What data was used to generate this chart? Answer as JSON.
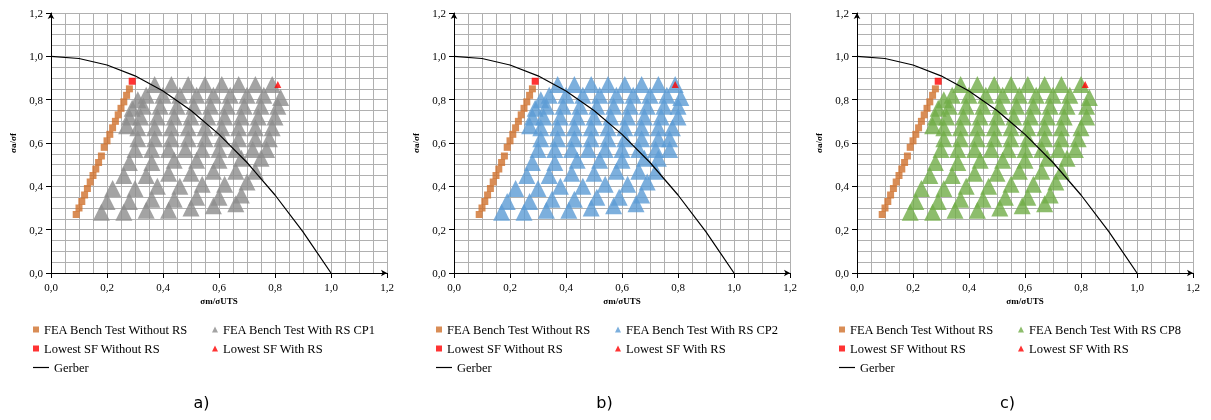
{
  "chart_data": [
    {
      "type": "scatter",
      "xlabel": "σm/σUTS",
      "ylabel": "σa/σf",
      "xlim": [
        0,
        1.2
      ],
      "ylim": [
        0,
        1.2
      ],
      "xticks": [
        {
          "value": 0,
          "label": "0,0"
        },
        {
          "value": 0.2,
          "label": "0,2"
        },
        {
          "value": 0.4,
          "label": "0,4"
        },
        {
          "value": 0.6,
          "label": "0,6"
        },
        {
          "value": 0.8,
          "label": "0,8"
        },
        {
          "value": 1,
          "label": "1,0"
        },
        {
          "value": 1.2,
          "label": "1,2"
        }
      ],
      "yticks": [
        {
          "value": 0,
          "label": "0,0"
        },
        {
          "value": 0.2,
          "label": "0,2"
        },
        {
          "value": 0.4,
          "label": "0,4"
        },
        {
          "value": 0.6,
          "label": "0,6"
        },
        {
          "value": 0.8,
          "label": "0,8"
        },
        {
          "value": 1,
          "label": "1,0"
        },
        {
          "value": 1.2,
          "label": "1,2"
        }
      ],
      "grid": true,
      "legend": "bottom",
      "annotations": [
        "a)"
      ],
      "series": [
        {
          "name": "FEA Bench Test Without RS",
          "color": "#d0702c",
          "type": "scatter",
          "marker": "square",
          "x": [
            0.09,
            0.1,
            0.11,
            0.12,
            0.13,
            0.14,
            0.15,
            0.16,
            0.17,
            0.18,
            0.19,
            0.2,
            0.21,
            0.22,
            0.23,
            0.24,
            0.25,
            0.26,
            0.27,
            0.28
          ],
          "values": [
            0.27,
            0.3,
            0.33,
            0.36,
            0.39,
            0.42,
            0.45,
            0.48,
            0.51,
            0.54,
            0.58,
            0.61,
            0.64,
            0.67,
            0.7,
            0.73,
            0.76,
            0.79,
            0.82,
            0.85
          ]
        },
        {
          "name": "FEA Bench Test With RS CP1",
          "color": "#8c8c8c",
          "type": "scatter",
          "marker": "triangle",
          "x": [
            0.37,
            0.43,
            0.49,
            0.55,
            0.61,
            0.67,
            0.73,
            0.79,
            0.34,
            0.4,
            0.46,
            0.52,
            0.58,
            0.64,
            0.7,
            0.76,
            0.82,
            0.33,
            0.39,
            0.45,
            0.51,
            0.57,
            0.63,
            0.69,
            0.75,
            0.81,
            0.32,
            0.38,
            0.44,
            0.5,
            0.56,
            0.62,
            0.68,
            0.74,
            0.8,
            0.31,
            0.37,
            0.43,
            0.49,
            0.55,
            0.61,
            0.67,
            0.73,
            0.79,
            0.31,
            0.37,
            0.43,
            0.49,
            0.55,
            0.61,
            0.67,
            0.73,
            0.78,
            0.3,
            0.36,
            0.42,
            0.48,
            0.54,
            0.6,
            0.66,
            0.72,
            0.77,
            0.27,
            0.28,
            0.29,
            0.31,
            0.28,
            0.36,
            0.44,
            0.52,
            0.6,
            0.68,
            0.75,
            0.26,
            0.34,
            0.42,
            0.5,
            0.58,
            0.66,
            0.73,
            0.22,
            0.3,
            0.38,
            0.46,
            0.54,
            0.62,
            0.7,
            0.2,
            0.28,
            0.36,
            0.44,
            0.52,
            0.6,
            0.68,
            0.18,
            0.26,
            0.34,
            0.42,
            0.5,
            0.58,
            0.66
          ],
          "values": [
            0.87,
            0.87,
            0.87,
            0.87,
            0.87,
            0.87,
            0.87,
            0.87,
            0.82,
            0.82,
            0.82,
            0.82,
            0.82,
            0.82,
            0.82,
            0.82,
            0.81,
            0.77,
            0.77,
            0.77,
            0.77,
            0.77,
            0.77,
            0.77,
            0.77,
            0.77,
            0.72,
            0.72,
            0.72,
            0.72,
            0.72,
            0.72,
            0.72,
            0.72,
            0.72,
            0.67,
            0.67,
            0.67,
            0.67,
            0.67,
            0.67,
            0.67,
            0.67,
            0.67,
            0.62,
            0.62,
            0.62,
            0.62,
            0.62,
            0.62,
            0.62,
            0.62,
            0.62,
            0.57,
            0.57,
            0.57,
            0.57,
            0.57,
            0.57,
            0.57,
            0.57,
            0.57,
            0.68,
            0.72,
            0.76,
            0.8,
            0.51,
            0.51,
            0.52,
            0.52,
            0.52,
            0.53,
            0.53,
            0.45,
            0.45,
            0.46,
            0.46,
            0.47,
            0.47,
            0.47,
            0.39,
            0.39,
            0.4,
            0.4,
            0.41,
            0.41,
            0.42,
            0.33,
            0.33,
            0.34,
            0.34,
            0.35,
            0.35,
            0.36,
            0.28,
            0.28,
            0.29,
            0.29,
            0.3,
            0.31,
            0.32
          ]
        },
        {
          "name": "Lowest SF Without RS",
          "color": "#ff0000",
          "type": "scatter",
          "marker": "square",
          "x": [
            0.29
          ],
          "values": [
            0.885
          ]
        },
        {
          "name": "Lowest SF With RS",
          "color": "#ff0000",
          "type": "scatter",
          "marker": "triangle",
          "x": [
            0.81
          ],
          "values": [
            0.87
          ]
        },
        {
          "name": "Gerber",
          "color": "#000000",
          "type": "line",
          "marker": "none",
          "x": [
            0,
            0.1,
            0.2,
            0.3,
            0.4,
            0.5,
            0.6,
            0.7,
            0.8,
            0.9,
            1
          ],
          "values": [
            1,
            0.99,
            0.96,
            0.91,
            0.84,
            0.75,
            0.64,
            0.51,
            0.36,
            0.19,
            0
          ]
        }
      ]
    },
    {
      "type": "scatter",
      "xlabel": "σm/σUTS",
      "ylabel": "σa/σf",
      "xlim": [
        0,
        1.2
      ],
      "ylim": [
        0,
        1.2
      ],
      "xticks": [
        {
          "value": 0,
          "label": "0,0"
        },
        {
          "value": 0.2,
          "label": "0,2"
        },
        {
          "value": 0.4,
          "label": "0,4"
        },
        {
          "value": 0.6,
          "label": "0,6"
        },
        {
          "value": 0.8,
          "label": "0,8"
        },
        {
          "value": 1,
          "label": "1,0"
        },
        {
          "value": 1.2,
          "label": "1,2"
        }
      ],
      "yticks": [
        {
          "value": 0,
          "label": "0,0"
        },
        {
          "value": 0.2,
          "label": "0,2"
        },
        {
          "value": 0.4,
          "label": "0,4"
        },
        {
          "value": 0.6,
          "label": "0,6"
        },
        {
          "value": 0.8,
          "label": "0,8"
        },
        {
          "value": 1,
          "label": "1,0"
        },
        {
          "value": 1.2,
          "label": "1,2"
        }
      ],
      "grid": true,
      "legend": "bottom",
      "annotations": [
        "b)"
      ],
      "series": [
        {
          "name": "FEA Bench Test Without RS",
          "color": "#d0702c",
          "type": "scatter",
          "marker": "square",
          "x": [
            0.09,
            0.1,
            0.11,
            0.12,
            0.13,
            0.14,
            0.15,
            0.16,
            0.17,
            0.18,
            0.19,
            0.2,
            0.21,
            0.22,
            0.23,
            0.24,
            0.25,
            0.26,
            0.27,
            0.28
          ],
          "values": [
            0.27,
            0.3,
            0.33,
            0.36,
            0.39,
            0.42,
            0.45,
            0.48,
            0.51,
            0.54,
            0.58,
            0.61,
            0.64,
            0.67,
            0.7,
            0.73,
            0.76,
            0.79,
            0.82,
            0.85
          ]
        },
        {
          "name": "FEA Bench Test With RS CP2",
          "color": "#5b9bd5",
          "type": "scatter",
          "marker": "triangle",
          "x": [
            0.37,
            0.43,
            0.49,
            0.55,
            0.61,
            0.67,
            0.73,
            0.79,
            0.34,
            0.4,
            0.46,
            0.52,
            0.58,
            0.64,
            0.7,
            0.76,
            0.81,
            0.33,
            0.39,
            0.45,
            0.51,
            0.57,
            0.63,
            0.69,
            0.75,
            0.8,
            0.32,
            0.38,
            0.44,
            0.5,
            0.56,
            0.62,
            0.68,
            0.74,
            0.8,
            0.31,
            0.37,
            0.43,
            0.49,
            0.55,
            0.61,
            0.67,
            0.73,
            0.78,
            0.31,
            0.37,
            0.43,
            0.49,
            0.55,
            0.61,
            0.67,
            0.73,
            0.77,
            0.3,
            0.36,
            0.42,
            0.48,
            0.54,
            0.6,
            0.66,
            0.72,
            0.77,
            0.27,
            0.28,
            0.29,
            0.31,
            0.28,
            0.36,
            0.44,
            0.52,
            0.6,
            0.68,
            0.73,
            0.26,
            0.34,
            0.42,
            0.5,
            0.58,
            0.66,
            0.72,
            0.22,
            0.3,
            0.38,
            0.46,
            0.54,
            0.62,
            0.69,
            0.19,
            0.27,
            0.35,
            0.43,
            0.51,
            0.59,
            0.67,
            0.17,
            0.25,
            0.33,
            0.41,
            0.49,
            0.57,
            0.65
          ],
          "values": [
            0.87,
            0.87,
            0.87,
            0.87,
            0.87,
            0.87,
            0.87,
            0.87,
            0.82,
            0.82,
            0.82,
            0.82,
            0.82,
            0.82,
            0.82,
            0.82,
            0.81,
            0.77,
            0.77,
            0.77,
            0.77,
            0.77,
            0.77,
            0.77,
            0.77,
            0.77,
            0.72,
            0.72,
            0.72,
            0.72,
            0.72,
            0.72,
            0.72,
            0.72,
            0.72,
            0.67,
            0.67,
            0.67,
            0.67,
            0.67,
            0.67,
            0.67,
            0.67,
            0.67,
            0.62,
            0.62,
            0.62,
            0.62,
            0.62,
            0.62,
            0.62,
            0.62,
            0.62,
            0.57,
            0.57,
            0.57,
            0.57,
            0.57,
            0.57,
            0.57,
            0.57,
            0.57,
            0.68,
            0.72,
            0.76,
            0.8,
            0.51,
            0.51,
            0.52,
            0.52,
            0.52,
            0.53,
            0.53,
            0.45,
            0.45,
            0.46,
            0.46,
            0.47,
            0.47,
            0.47,
            0.39,
            0.39,
            0.4,
            0.4,
            0.41,
            0.41,
            0.42,
            0.33,
            0.33,
            0.34,
            0.34,
            0.35,
            0.35,
            0.36,
            0.28,
            0.28,
            0.29,
            0.29,
            0.3,
            0.31,
            0.32
          ]
        },
        {
          "name": "Lowest SF Without RS",
          "color": "#ff0000",
          "type": "scatter",
          "marker": "square",
          "x": [
            0.29
          ],
          "values": [
            0.885
          ]
        },
        {
          "name": "Lowest SF With RS",
          "color": "#ff0000",
          "type": "scatter",
          "marker": "triangle",
          "x": [
            0.79
          ],
          "values": [
            0.87
          ]
        },
        {
          "name": "Gerber",
          "color": "#000000",
          "type": "line",
          "marker": "none",
          "x": [
            0,
            0.1,
            0.2,
            0.3,
            0.4,
            0.5,
            0.6,
            0.7,
            0.8,
            0.9,
            1
          ],
          "values": [
            1,
            0.99,
            0.96,
            0.91,
            0.84,
            0.75,
            0.64,
            0.51,
            0.36,
            0.19,
            0
          ]
        }
      ]
    },
    {
      "type": "scatter",
      "xlabel": "σm/σUTS",
      "ylabel": "σa/σf",
      "xlim": [
        0,
        1.2
      ],
      "ylim": [
        0,
        1.2
      ],
      "xticks": [
        {
          "value": 0,
          "label": "0,0"
        },
        {
          "value": 0.2,
          "label": "0,2"
        },
        {
          "value": 0.4,
          "label": "0,4"
        },
        {
          "value": 0.6,
          "label": "0,6"
        },
        {
          "value": 0.8,
          "label": "0,8"
        },
        {
          "value": 1,
          "label": "1,0"
        },
        {
          "value": 1.2,
          "label": "1,2"
        }
      ],
      "yticks": [
        {
          "value": 0,
          "label": "0,0"
        },
        {
          "value": 0.2,
          "label": "0,2"
        },
        {
          "value": 0.4,
          "label": "0,4"
        },
        {
          "value": 0.6,
          "label": "0,6"
        },
        {
          "value": 0.8,
          "label": "0,8"
        },
        {
          "value": 1,
          "label": "1,0"
        },
        {
          "value": 1.2,
          "label": "1,2"
        }
      ],
      "grid": true,
      "legend": "bottom",
      "annotations": [
        "c)"
      ],
      "series": [
        {
          "name": "FEA Bench Test Without RS",
          "color": "#d0702c",
          "type": "scatter",
          "marker": "square",
          "x": [
            0.09,
            0.1,
            0.11,
            0.12,
            0.13,
            0.14,
            0.15,
            0.16,
            0.17,
            0.18,
            0.19,
            0.2,
            0.21,
            0.22,
            0.23,
            0.24,
            0.25,
            0.26,
            0.27,
            0.28
          ],
          "values": [
            0.27,
            0.3,
            0.33,
            0.36,
            0.39,
            0.42,
            0.45,
            0.48,
            0.51,
            0.54,
            0.58,
            0.61,
            0.64,
            0.67,
            0.7,
            0.73,
            0.76,
            0.79,
            0.82,
            0.85
          ]
        },
        {
          "name": "FEA Bench Test With RS CP8",
          "color": "#70ad47",
          "type": "scatter",
          "marker": "triangle",
          "x": [
            0.37,
            0.43,
            0.49,
            0.55,
            0.61,
            0.67,
            0.73,
            0.8,
            0.34,
            0.4,
            0.46,
            0.52,
            0.58,
            0.64,
            0.7,
            0.76,
            0.83,
            0.33,
            0.39,
            0.45,
            0.51,
            0.57,
            0.63,
            0.69,
            0.75,
            0.82,
            0.32,
            0.38,
            0.44,
            0.5,
            0.56,
            0.62,
            0.68,
            0.74,
            0.82,
            0.31,
            0.37,
            0.43,
            0.49,
            0.55,
            0.61,
            0.67,
            0.73,
            0.8,
            0.31,
            0.37,
            0.43,
            0.49,
            0.55,
            0.61,
            0.67,
            0.73,
            0.79,
            0.3,
            0.36,
            0.42,
            0.48,
            0.54,
            0.6,
            0.66,
            0.72,
            0.78,
            0.27,
            0.28,
            0.29,
            0.31,
            0.28,
            0.36,
            0.44,
            0.52,
            0.6,
            0.68,
            0.75,
            0.26,
            0.34,
            0.42,
            0.5,
            0.58,
            0.66,
            0.73,
            0.23,
            0.31,
            0.39,
            0.47,
            0.55,
            0.63,
            0.71,
            0.21,
            0.29,
            0.37,
            0.45,
            0.53,
            0.61,
            0.69,
            0.19,
            0.27,
            0.35,
            0.43,
            0.51,
            0.59,
            0.67
          ],
          "values": [
            0.87,
            0.87,
            0.87,
            0.87,
            0.87,
            0.87,
            0.87,
            0.87,
            0.82,
            0.82,
            0.82,
            0.82,
            0.82,
            0.82,
            0.82,
            0.82,
            0.81,
            0.77,
            0.77,
            0.77,
            0.77,
            0.77,
            0.77,
            0.77,
            0.77,
            0.77,
            0.72,
            0.72,
            0.72,
            0.72,
            0.72,
            0.72,
            0.72,
            0.72,
            0.72,
            0.67,
            0.67,
            0.67,
            0.67,
            0.67,
            0.67,
            0.67,
            0.67,
            0.67,
            0.62,
            0.62,
            0.62,
            0.62,
            0.62,
            0.62,
            0.62,
            0.62,
            0.62,
            0.57,
            0.57,
            0.57,
            0.57,
            0.57,
            0.57,
            0.57,
            0.57,
            0.57,
            0.68,
            0.72,
            0.76,
            0.8,
            0.51,
            0.51,
            0.52,
            0.52,
            0.52,
            0.53,
            0.53,
            0.45,
            0.45,
            0.46,
            0.46,
            0.47,
            0.47,
            0.47,
            0.39,
            0.39,
            0.4,
            0.4,
            0.41,
            0.41,
            0.42,
            0.33,
            0.33,
            0.34,
            0.34,
            0.35,
            0.35,
            0.36,
            0.28,
            0.28,
            0.29,
            0.29,
            0.3,
            0.31,
            0.32
          ]
        },
        {
          "name": "Lowest SF Without RS",
          "color": "#ff0000",
          "type": "scatter",
          "marker": "square",
          "x": [
            0.29
          ],
          "values": [
            0.885
          ]
        },
        {
          "name": "Lowest SF With RS",
          "color": "#ff0000",
          "type": "scatter",
          "marker": "triangle",
          "x": [
            0.815
          ],
          "values": [
            0.87
          ]
        },
        {
          "name": "Gerber",
          "color": "#000000",
          "type": "line",
          "marker": "none",
          "x": [
            0,
            0.1,
            0.2,
            0.3,
            0.4,
            0.5,
            0.6,
            0.7,
            0.8,
            0.9,
            1
          ],
          "values": [
            1,
            0.99,
            0.96,
            0.91,
            0.84,
            0.75,
            0.64,
            0.51,
            0.36,
            0.19,
            0
          ]
        }
      ]
    }
  ]
}
